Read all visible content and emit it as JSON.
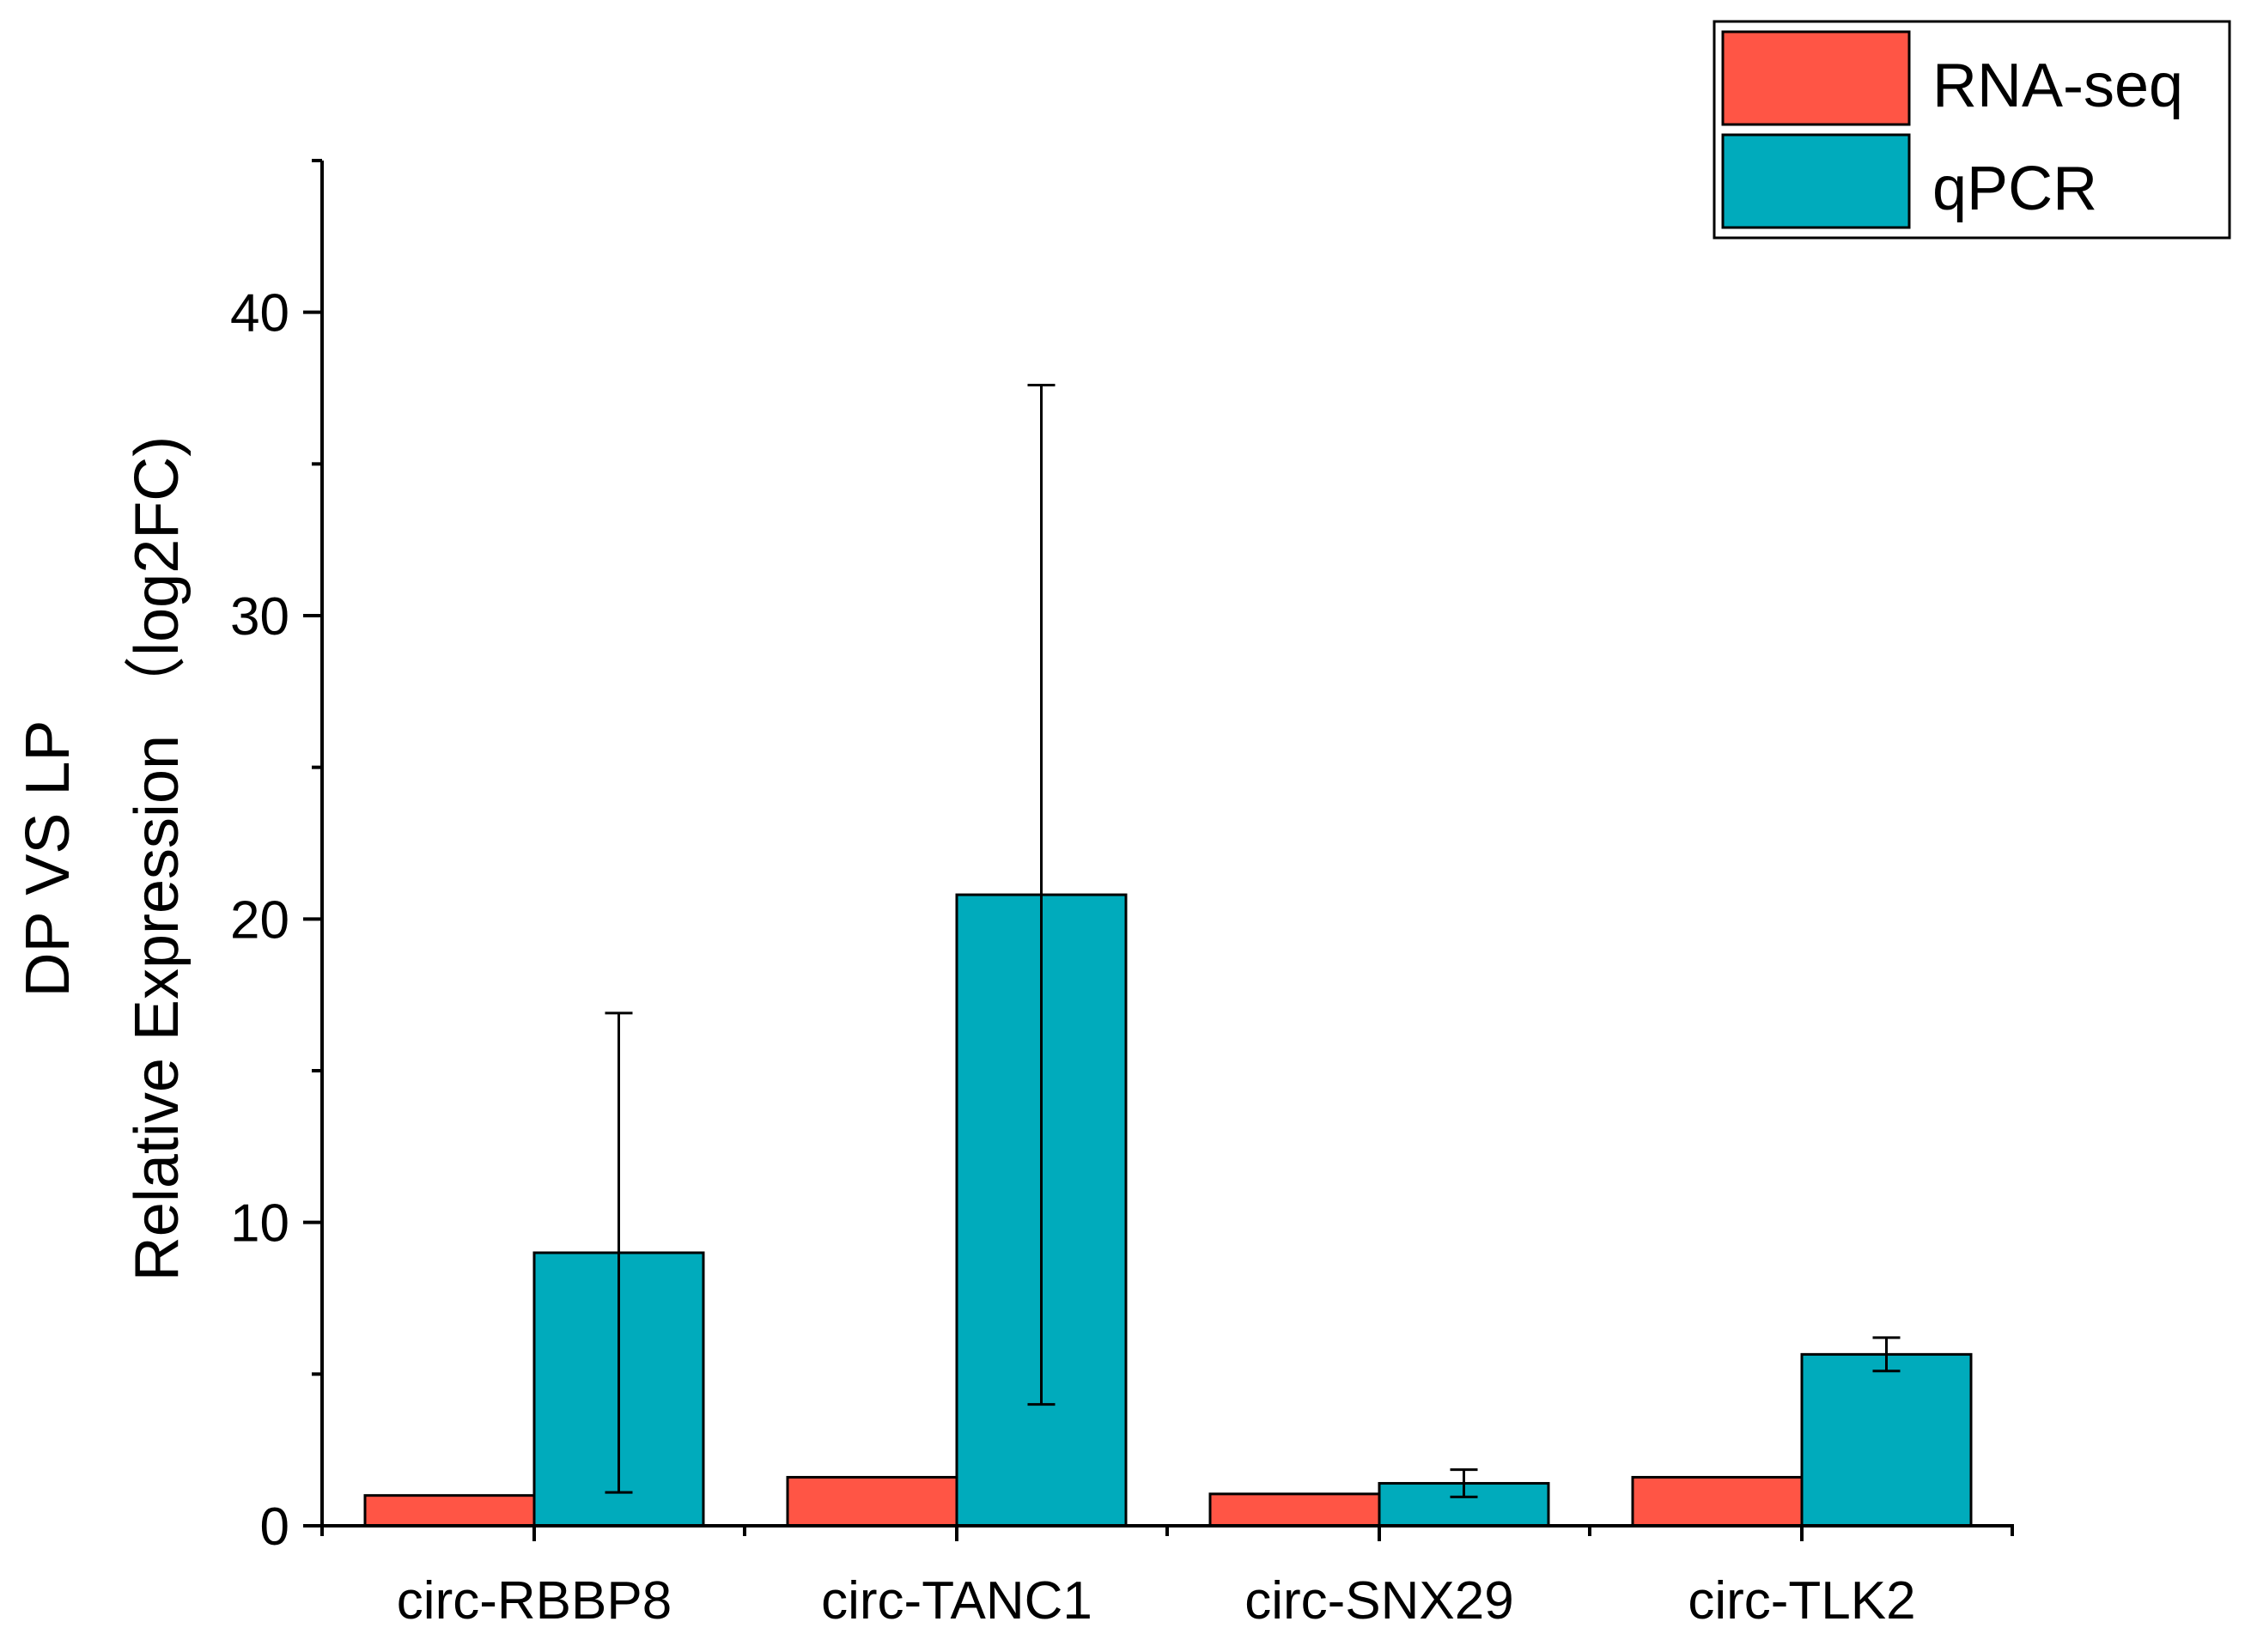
{
  "chart_data": {
    "type": "bar",
    "title": "",
    "xlabel": "",
    "ylabel_line1": "DP VS LP",
    "ylabel_line2": "Relative Expression （log2FC)",
    "ylim": [
      0,
      45
    ],
    "yticks": [
      0,
      10,
      20,
      30,
      40
    ],
    "yticks_minor": [
      5,
      15,
      25,
      35,
      45
    ],
    "grid": false,
    "legend_position": "top-right",
    "categories": [
      "circ-RBBP8",
      "circ-TANC1",
      "circ-SNX29",
      "circ-TLK2"
    ],
    "series": [
      {
        "name": "RNA-seq",
        "color": "#FF5545",
        "values": [
          1.0,
          1.6,
          1.05,
          1.6
        ],
        "errors": [
          null,
          null,
          null,
          null
        ]
      },
      {
        "name": "qPCR",
        "color": "#00ABBC",
        "values": [
          9.0,
          20.8,
          1.4,
          5.65
        ],
        "errors": [
          7.9,
          16.8,
          0.45,
          0.55
        ]
      }
    ]
  }
}
